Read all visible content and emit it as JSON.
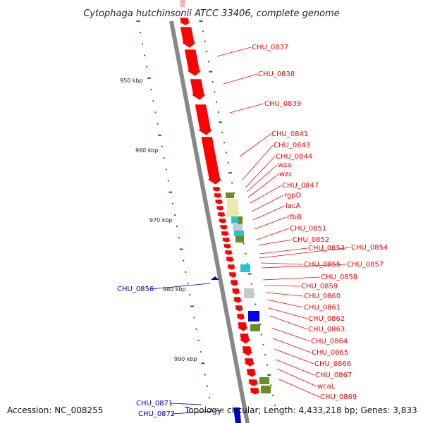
{
  "title": "Cytophaga hutchinsonii ATCC 33406, complete genome",
  "footer": {
    "accession": "Accession: NC_008255",
    "summary": "Topology: circular; Length: 4,433,218 bp; Genes: 3,833"
  },
  "colors": {
    "forward_gene": "#ff0000",
    "reverse_gene": "#0000cc",
    "backbone": "#888888",
    "gc_ticks": "#1a7a1a",
    "cog_olive": "#6b8e23",
    "cog_yellow": "#eee8aa",
    "cog_cyan": "#22c5d0",
    "cog_grey": "#c8c8c8",
    "cog_blue": "#0000ee"
  },
  "scale_labels": [
    "950 kbp",
    "960 kbp",
    "970 kbp",
    "980 kbp",
    "990 kbp"
  ],
  "forward_labels": [
    "CHU_0837",
    "CHU_0838",
    "CHU_0839",
    "CHU_0841",
    "CHU_0843",
    "CHU_0844",
    "wza",
    "wzc",
    "CHU_0847",
    "rgpD",
    "lacA",
    "rfbB",
    "CHU_0851",
    "CHU_0852",
    "CHU_0853",
    "CHU_0854",
    "CHU_0855",
    "CHU_0857",
    "CHU_0858",
    "CHU_0859",
    "CHU_0860",
    "CHU_0861",
    "CHU_0862",
    "CHU_0863",
    "CHU_0864",
    "CHU_0865",
    "CHU_0866",
    "CHU_0867",
    "wcaL",
    "CHU_0869"
  ],
  "reverse_labels": [
    "CHU_0856",
    "CHU_0871",
    "CHU_0872"
  ]
}
